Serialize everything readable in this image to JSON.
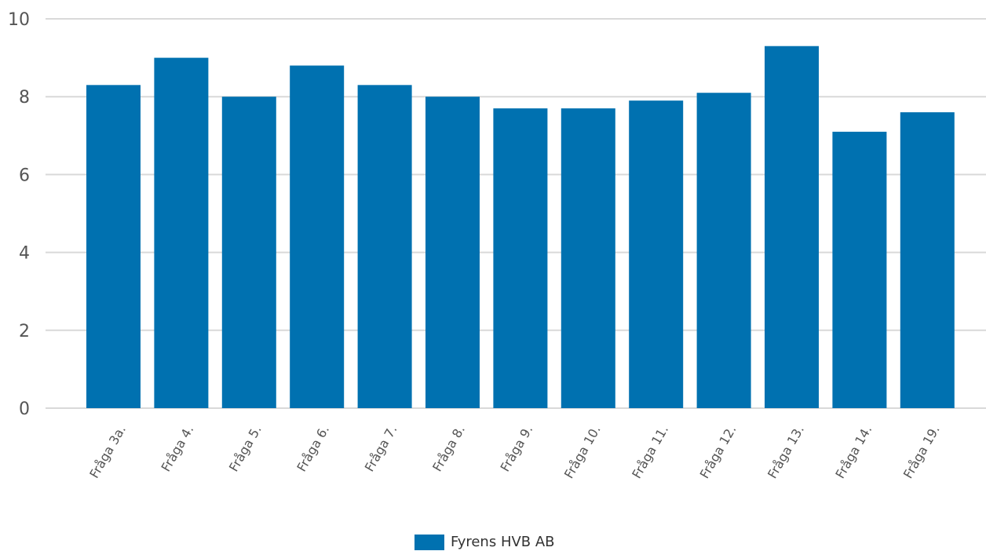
{
  "chart_data": {
    "type": "bar",
    "categories": [
      "Fråga 3a.",
      "Fråga 4.",
      "Fråga 5.",
      "Fråga 6.",
      "Fråga 7.",
      "Fråga 8.",
      "Fråga 9.",
      "Fråga 10.",
      "Fråga 11.",
      "Fråga 12.",
      "Fråga 13.",
      "Fråga 14.",
      "Fråga 19."
    ],
    "series": [
      {
        "name": "Fyrens HVB AB",
        "values": [
          8.3,
          9.0,
          8.0,
          8.8,
          8.3,
          8.0,
          7.7,
          7.7,
          7.9,
          8.1,
          9.3,
          7.1,
          7.6
        ]
      }
    ],
    "ylim": [
      0,
      10
    ],
    "yticks": [
      0,
      2,
      4,
      6,
      8,
      10
    ],
    "grid": true,
    "legend_position": "bottom-center",
    "colors": {
      "bar": "#0071b0",
      "grid": "#d9d9d9",
      "text": "#555555"
    }
  }
}
